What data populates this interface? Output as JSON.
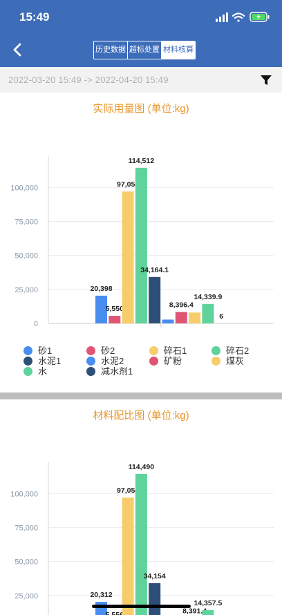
{
  "status_bar": {
    "time": "15:49"
  },
  "nav": {
    "tabs": [
      {
        "label": "历史数据",
        "active": false
      },
      {
        "label": "超标处置",
        "active": false
      },
      {
        "label": "材料核算",
        "active": true
      }
    ]
  },
  "filter": {
    "range_text": "2022-03-20 15:49  ->  2022-04-20 15:49"
  },
  "colors": {
    "header": "#3d6cb9",
    "title": "#e6962c",
    "series": [
      "#4a8df0",
      "#df5573",
      "#f6cd6a",
      "#5fd39b",
      "#2d4f77",
      "#4a8df0",
      "#df5573",
      "#f6cd6a",
      "#5fd39b",
      "#2d4f77"
    ]
  },
  "legend": [
    "砂1",
    "砂2",
    "碎石1",
    "碎石2",
    "水泥1",
    "水泥2",
    "矿粉",
    "煤灰",
    "水",
    "减水剂1"
  ],
  "chart_data": [
    {
      "type": "bar",
      "title": "实际用量图 (单位:kg)",
      "categories": [
        "砂1",
        "砂2",
        "碎石1",
        "碎石2",
        "水泥1",
        "水泥2",
        "矿粉",
        "煤灰",
        "水",
        "减水剂1"
      ],
      "values": [
        20398,
        5550,
        97058,
        114512,
        34164.1,
        2800,
        8396.4,
        8000,
        14339.9,
        6
      ],
      "data_labels": [
        "20,398",
        "5,550",
        "97,058",
        "114,512",
        "34,164.1",
        "",
        "8,396.4",
        "",
        "14,339.9",
        "6"
      ],
      "ylim": [
        0,
        120000
      ],
      "yticks": [
        "0",
        "25,000",
        "50,000",
        "75,000",
        "100,000"
      ],
      "tick_values": [
        0,
        25000,
        50000,
        75000,
        100000
      ],
      "grid": true,
      "legend_position": "bottom"
    },
    {
      "type": "bar",
      "title": "材料配比图 (单位:kg)",
      "categories": [
        "砂1",
        "砂2",
        "碎石1",
        "碎石2",
        "水泥1",
        "水泥2",
        "矿粉",
        "煤灰",
        "水",
        "减水剂1"
      ],
      "values": [
        20312,
        5556,
        97054,
        114490,
        34154,
        null,
        null,
        8391.4,
        14357.5,
        null
      ],
      "data_labels": [
        "20,312",
        "5,556",
        "97,054",
        "114,490",
        "34,154",
        "",
        "",
        "8,391.4",
        "14,357.5",
        ""
      ],
      "ylim": [
        0,
        120000
      ],
      "yticks": [
        "25,000",
        "50,000",
        "75,000",
        "100,000"
      ],
      "tick_values": [
        25000,
        50000,
        75000,
        100000
      ],
      "grid": true
    }
  ]
}
